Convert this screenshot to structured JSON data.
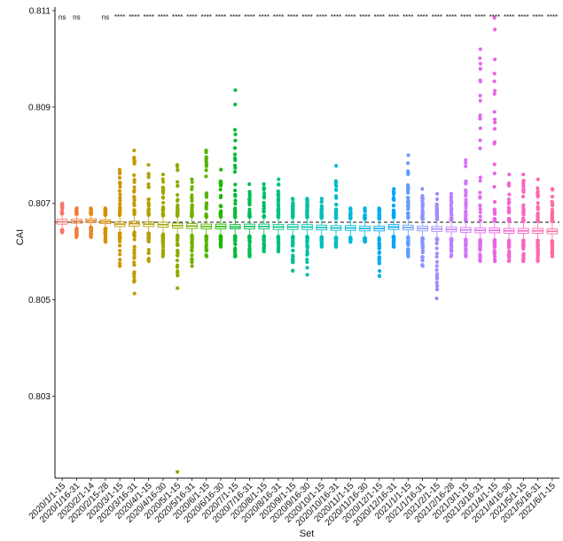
{
  "chart_data": {
    "type": "box",
    "xlabel": "Set",
    "ylabel": "CAI",
    "ylim": [
      0.8013,
      0.811
    ],
    "yticks": [
      0.803,
      0.805,
      0.807,
      0.809,
      0.811
    ],
    "reference_line": 0.80661,
    "grid": false,
    "legend": "none",
    "categories": [
      "2020/1/1-15",
      "2020/1/16-31",
      "2020/2/1-14",
      "2020/2/15-28",
      "2020/3/1-15",
      "2020/3/16-31",
      "2020/4/1-15",
      "2020/4/16-30",
      "2020/5/1-15",
      "2020/5/16-31",
      "2020/6/1-15",
      "2020/6/16-30",
      "2020/7/1-15",
      "2020/7/16-31",
      "2020/8/1-15",
      "2020/8/16-31",
      "2020/9/1-15",
      "2020/9/16-30",
      "2020/10/1-15",
      "2020/10/16-31",
      "2020/11/1-15",
      "2020/11/16-30",
      "2020/12/1-15",
      "2020/12/16-31",
      "2021/1/1-15",
      "2021/1/16-31",
      "2021/2/1-15",
      "2021/2/16-28",
      "2021/3/1-15",
      "2021/3/16-31",
      "2021/4/1-15",
      "2021/4/16-30",
      "2021/5/1-15",
      "2021/5/16-31",
      "2021/6/1-15"
    ],
    "colors": [
      "#F8766D",
      "#F07D3C",
      "#E6861E",
      "#D88F00",
      "#CC9600",
      "#C49A00",
      "#B3A000",
      "#A3A500",
      "#8DAB00",
      "#72B000",
      "#53B400",
      "#1FB800",
      "#00BA38",
      "#00BC54",
      "#00BE6C",
      "#00C082",
      "#00C095",
      "#00C0A8",
      "#00BFB8",
      "#00BDC7",
      "#00BAD5",
      "#00B4E2",
      "#00ADEE",
      "#00A5F7",
      "#619CFF",
      "#8A94FF",
      "#A58AFF",
      "#BE7FFF",
      "#D176F9",
      "#E06BF0",
      "#EC62E3",
      "#F564D2",
      "#FA66C1",
      "#FD69AF",
      "#FF6C9B"
    ],
    "medians": [
      0.80662,
      0.80663,
      0.80664,
      0.80662,
      0.80657,
      0.80658,
      0.80657,
      0.80656,
      0.80654,
      0.80653,
      0.80652,
      0.80652,
      0.80651,
      0.80652,
      0.80652,
      0.80651,
      0.80651,
      0.80651,
      0.8065,
      0.80649,
      0.80649,
      0.80648,
      0.80648,
      0.80651,
      0.8065,
      0.80648,
      0.80647,
      0.80646,
      0.80645,
      0.80644,
      0.80644,
      0.80643,
      0.80643,
      0.80643,
      0.80642
    ],
    "q1": [
      0.80657,
      0.80659,
      0.8066,
      0.80658,
      0.80652,
      0.80653,
      0.80652,
      0.80651,
      0.80649,
      0.80648,
      0.80647,
      0.80647,
      0.80647,
      0.80647,
      0.80647,
      0.80646,
      0.80646,
      0.80646,
      0.80645,
      0.80644,
      0.80644,
      0.80643,
      0.80643,
      0.80646,
      0.80645,
      0.80643,
      0.80642,
      0.80641,
      0.8064,
      0.80639,
      0.80639,
      0.80638,
      0.80638,
      0.80638,
      0.80637
    ],
    "q3": [
      0.80667,
      0.80667,
      0.80668,
      0.80666,
      0.80662,
      0.80663,
      0.80662,
      0.80661,
      0.80659,
      0.80658,
      0.80657,
      0.80657,
      0.80656,
      0.80657,
      0.80657,
      0.80656,
      0.80656,
      0.80656,
      0.80655,
      0.80654,
      0.80654,
      0.80653,
      0.80653,
      0.80656,
      0.80655,
      0.80653,
      0.80652,
      0.80651,
      0.8065,
      0.80649,
      0.80649,
      0.80648,
      0.80648,
      0.80648,
      0.80647
    ],
    "whisker_low": [
      0.80645,
      0.80648,
      0.8065,
      0.80648,
      0.80638,
      0.8064,
      0.80638,
      0.80636,
      0.80634,
      0.80633,
      0.80632,
      0.80632,
      0.80632,
      0.80632,
      0.80632,
      0.80631,
      0.80631,
      0.80631,
      0.8063,
      0.80629,
      0.80629,
      0.80628,
      0.80628,
      0.80631,
      0.8063,
      0.80628,
      0.80627,
      0.80626,
      0.80625,
      0.80624,
      0.80624,
      0.80623,
      0.80623,
      0.80623,
      0.80622
    ],
    "whisker_high": [
      0.80679,
      0.80678,
      0.80678,
      0.80676,
      0.80676,
      0.80677,
      0.80676,
      0.80675,
      0.80674,
      0.80673,
      0.80672,
      0.80672,
      0.80671,
      0.80672,
      0.80672,
      0.80671,
      0.80671,
      0.80671,
      0.8067,
      0.80669,
      0.80669,
      0.80668,
      0.80668,
      0.80671,
      0.8067,
      0.80668,
      0.80667,
      0.80666,
      0.80665,
      0.80664,
      0.80664,
      0.80663,
      0.80663,
      0.80663,
      0.80662
    ],
    "outlier_min": [
      0.8064,
      0.8063,
      0.8063,
      0.8062,
      0.8057,
      0.80513,
      0.8058,
      0.8059,
      0.80143,
      0.8057,
      0.8059,
      0.8061,
      0.8059,
      0.8059,
      0.806,
      0.806,
      0.8056,
      0.80552,
      0.8061,
      0.8061,
      0.8062,
      0.8062,
      0.80549,
      0.8061,
      0.8059,
      0.8057,
      0.80503,
      0.8059,
      0.8059,
      0.8058,
      0.8058,
      0.8058,
      0.8058,
      0.8058,
      0.8059
    ],
    "outlier_max": [
      0.807,
      0.8069,
      0.8069,
      0.8069,
      0.8077,
      0.8081,
      0.8078,
      0.8076,
      0.8078,
      0.8075,
      0.8081,
      0.8077,
      0.80935,
      0.8074,
      0.8074,
      0.8075,
      0.8071,
      0.8071,
      0.8071,
      0.80778,
      0.8069,
      0.8069,
      0.8069,
      0.8073,
      0.808,
      0.8073,
      0.8072,
      0.8072,
      0.8079,
      0.8102,
      0.81085,
      0.8076,
      0.8076,
      0.8075,
      0.8073
    ],
    "significance": [
      "ns",
      "ns",
      "",
      "ns",
      "****",
      "****",
      "****",
      "****",
      "****",
      "****",
      "****",
      "****",
      "****",
      "****",
      "****",
      "****",
      "****",
      "****",
      "****",
      "****",
      "****",
      "****",
      "****",
      "****",
      "****",
      "****",
      "****",
      "****",
      "****",
      "****",
      "****",
      "****",
      "****",
      "****",
      "****"
    ]
  }
}
